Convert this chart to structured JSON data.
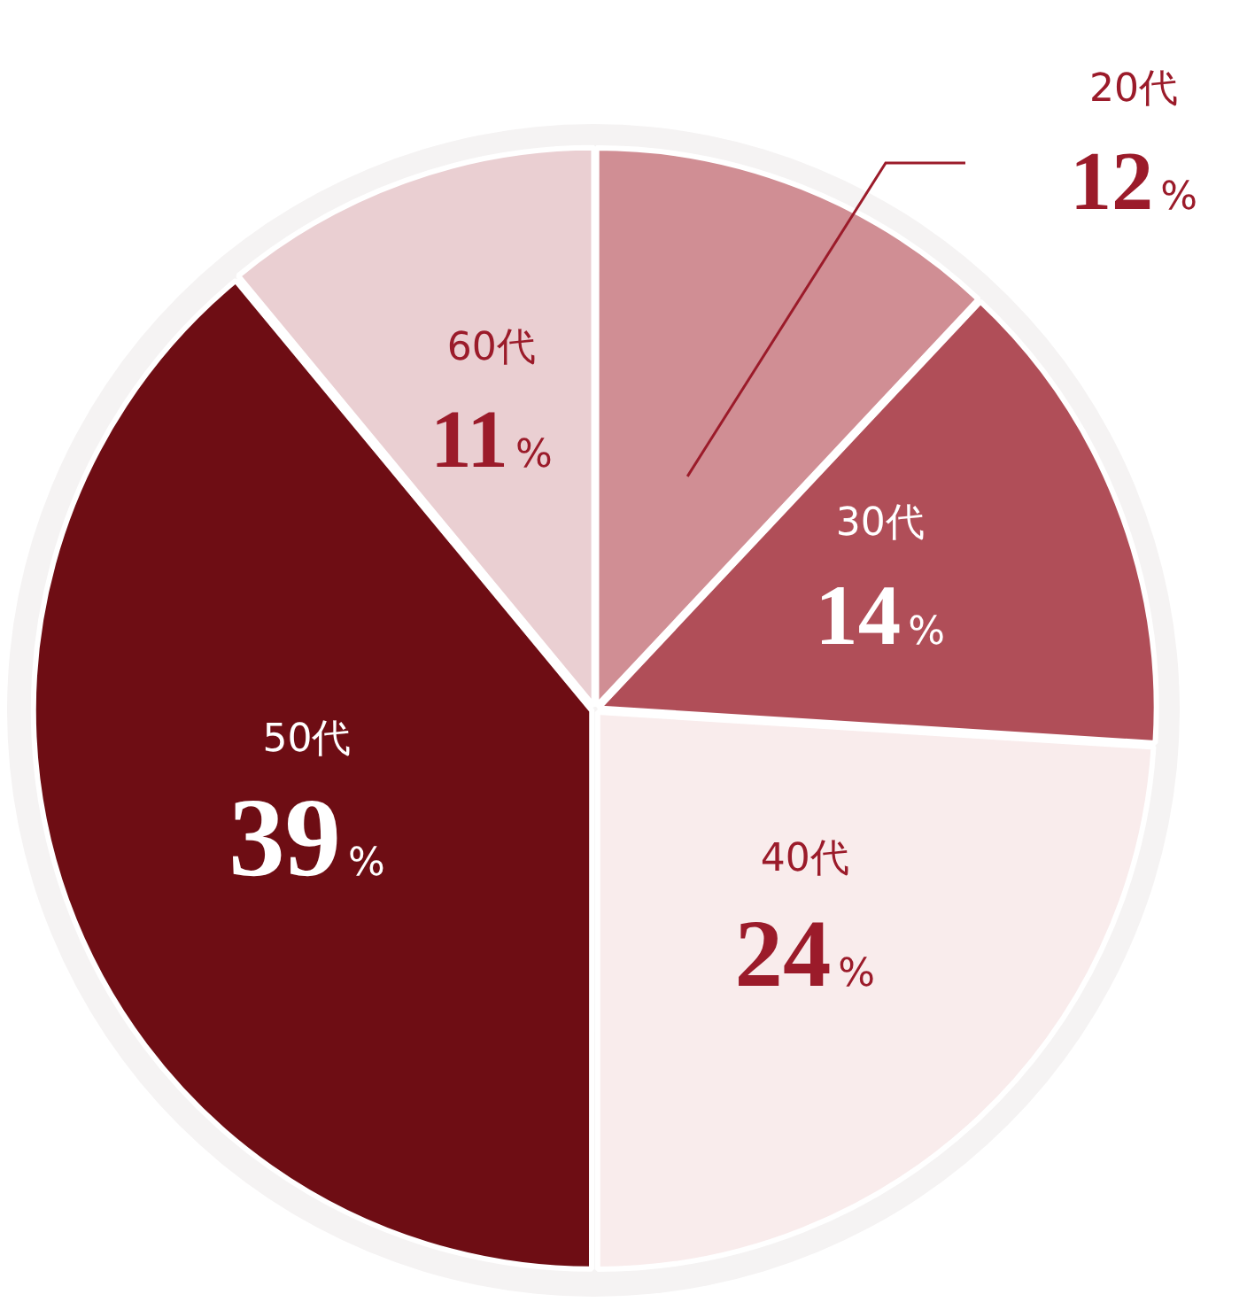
{
  "chart_data": {
    "type": "pie",
    "categories": [
      "20代",
      "30代",
      "40代",
      "50代",
      "60代"
    ],
    "values": [
      12,
      14,
      24,
      39,
      11
    ],
    "value_labels": [
      "12%",
      "14%",
      "24%",
      "39%",
      "11%"
    ],
    "colors": [
      "#d08e94",
      "#b04e58",
      "#f9ecec",
      "#6e0d14",
      "#eacfd2"
    ],
    "legend": false
  }
}
